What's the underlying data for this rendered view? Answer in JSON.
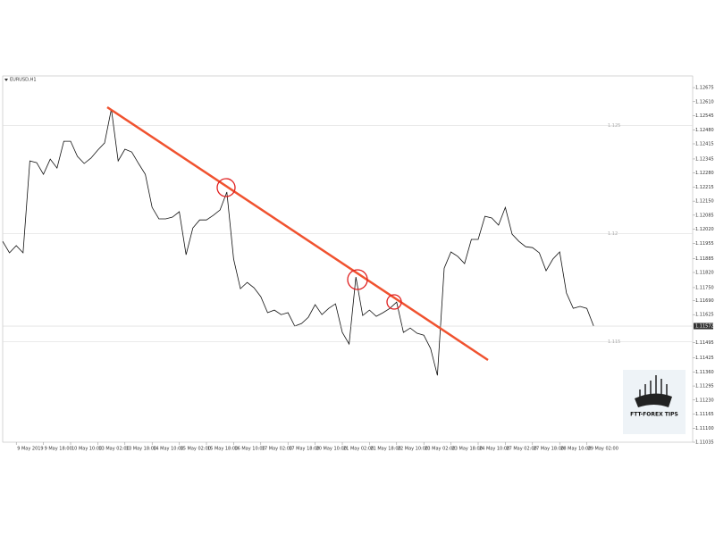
{
  "chart_data": {
    "type": "line",
    "title": "EURUSD,H1",
    "logo_text": "FTT-FOREX TIPS",
    "categories": [
      null,
      null,
      "9 May 2019",
      null,
      null,
      null,
      "9 May 18:00",
      null,
      null,
      null,
      "10 May 10:00",
      null,
      null,
      null,
      "13 May 02:00",
      null,
      null,
      null,
      "13 May 18:00",
      null,
      null,
      null,
      "14 May 10:00",
      null,
      null,
      null,
      "15 May 02:00",
      null,
      null,
      null,
      "15 May 18:00",
      null,
      null,
      null,
      "16 May 10:00",
      null,
      null,
      null,
      "17 May 02:00",
      null,
      null,
      null,
      "17 May 18:00",
      null,
      null,
      null,
      "20 May 10:00",
      null,
      null,
      null,
      "21 May 02:00",
      null,
      null,
      null,
      "21 May 18:00",
      null,
      null,
      null,
      "22 May 10:00",
      null,
      null,
      null,
      "23 May 02:00",
      null,
      null,
      null,
      "23 May 18:00",
      null,
      null,
      null,
      "24 May 10:00",
      null,
      null,
      null,
      "27 May 02:00",
      null,
      null,
      null,
      "27 May 18:00",
      null,
      null,
      null,
      "28 May 10:00",
      null,
      null,
      null,
      "29 May 02:00",
      null
    ],
    "series": [
      {
        "name": "EURUSD",
        "color": "#111111",
        "values": [
          1.11964,
          1.11911,
          1.11944,
          1.11911,
          1.12336,
          1.12328,
          1.12274,
          1.12344,
          1.12303,
          1.12427,
          1.12427,
          1.12357,
          1.12324,
          1.12349,
          1.12386,
          1.12419,
          1.12576,
          1.12336,
          1.1239,
          1.12377,
          1.12324,
          1.12274,
          1.12121,
          1.12068,
          1.12068,
          1.12076,
          1.12101,
          1.11902,
          1.12026,
          1.12063,
          1.12063,
          1.12084,
          1.12109,
          1.12192,
          1.11882,
          1.11745,
          1.11774,
          1.11749,
          1.11708,
          1.11634,
          1.11646,
          1.11625,
          1.11634,
          1.11572,
          1.11584,
          1.11613,
          1.11671,
          1.11625,
          1.11654,
          1.11675,
          1.11543,
          1.11489,
          1.11799,
          1.11621,
          1.11646,
          1.11617,
          1.11634,
          1.11654,
          1.11683,
          1.11543,
          1.11563,
          1.11539,
          1.1153,
          1.11468,
          1.11344,
          1.1184,
          1.11915,
          1.11894,
          1.11861,
          1.11973,
          1.11973,
          1.1208,
          1.12072,
          1.12039,
          1.12121,
          1.11997,
          1.11964,
          1.11939,
          1.11935,
          1.11911,
          1.11828,
          1.11882,
          1.11915,
          1.11725,
          1.11654,
          1.11663,
          1.11654,
          1.11572
        ]
      }
    ],
    "ylim": [
      1.11035,
      1.12729
    ],
    "yticks": [
      1.12675,
      {
        "value": 1.1261,
        "label": "1.12610"
      },
      1.12545,
      {
        "value": 1.1248,
        "label": "1.12480"
      },
      1.12415,
      1.12345,
      {
        "value": 1.1228,
        "label": "1.12280"
      },
      1.12215,
      {
        "value": 1.1215,
        "label": "1.12150"
      },
      1.12085,
      {
        "value": 1.1202,
        "label": "1.12020"
      },
      1.11955,
      1.11885,
      {
        "value": 1.1182,
        "label": "1.11820"
      },
      {
        "value": 1.1175,
        "label": "1.11750"
      },
      {
        "value": 1.1169,
        "label": "1.11690"
      },
      1.11625,
      1.11495,
      1.11425,
      {
        "value": 1.1136,
        "label": "1.11360"
      },
      1.11295,
      {
        "value": 1.1123,
        "label": "1.11230"
      },
      1.11165,
      {
        "value": 1.111,
        "label": "1.11100"
      },
      1.11035
    ],
    "levels": [
      1.125,
      1.12,
      1.115
    ]
  }
}
